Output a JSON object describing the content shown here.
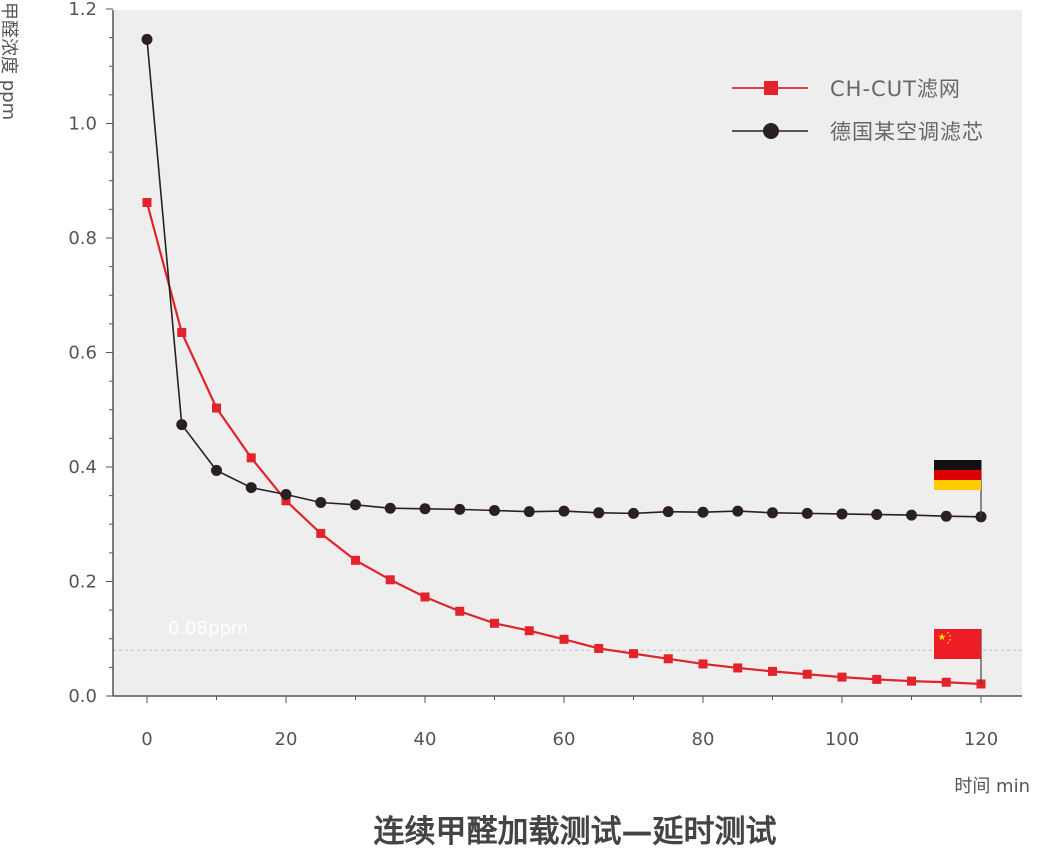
{
  "chart_data": {
    "type": "line",
    "title": "连续甲醛加载测试—延时测试",
    "xlabel": "时间 min",
    "ylabel": "甲醛浓度 ppm",
    "xlim": [
      -5,
      125
    ],
    "ylim": [
      0,
      1.2
    ],
    "x_ticks": [
      "0",
      "20",
      "40",
      "60",
      "80",
      "100",
      "120"
    ],
    "y_ticks": [
      "0.0",
      "0.2",
      "0.4",
      "0.6",
      "0.8",
      "1.0",
      "1.2"
    ],
    "grid": false,
    "legend_position": "top-right",
    "x": [
      0,
      5,
      10,
      15,
      20,
      25,
      30,
      35,
      40,
      45,
      50,
      55,
      60,
      65,
      70,
      75,
      80,
      85,
      90,
      95,
      100,
      105,
      110,
      115,
      120
    ],
    "series": [
      {
        "name": "CH-CUT滤网",
        "color": "#e2232b",
        "marker": "square",
        "values": [
          0.862,
          0.635,
          0.503,
          0.416,
          0.341,
          0.284,
          0.237,
          0.203,
          0.173,
          0.148,
          0.127,
          0.114,
          0.099,
          0.083,
          0.074,
          0.065,
          0.056,
          0.049,
          0.043,
          0.038,
          0.033,
          0.029,
          0.026,
          0.024,
          0.021
        ]
      },
      {
        "name": "德国某空调滤芯",
        "color": "#2b2020",
        "marker": "circle",
        "values": [
          1.147,
          0.474,
          0.394,
          0.364,
          0.352,
          0.338,
          0.334,
          0.328,
          0.327,
          0.326,
          0.324,
          0.322,
          0.323,
          0.32,
          0.319,
          0.322,
          0.321,
          0.323,
          0.32,
          0.319,
          0.318,
          0.317,
          0.316,
          0.314,
          0.313
        ]
      }
    ],
    "reference_line": {
      "value": 0.08,
      "label": "0.08ppm",
      "color": "#bbbbbb"
    },
    "flags": [
      {
        "name": "germany-flag-icon",
        "attached_series": 1,
        "colors": [
          "#111111",
          "#dd0000",
          "#ffcc00"
        ]
      },
      {
        "name": "china-flag-icon",
        "attached_series": 0,
        "colors": [
          "#ee1c25",
          "#ffde00"
        ]
      }
    ],
    "plot_background": "#eeeeee"
  }
}
